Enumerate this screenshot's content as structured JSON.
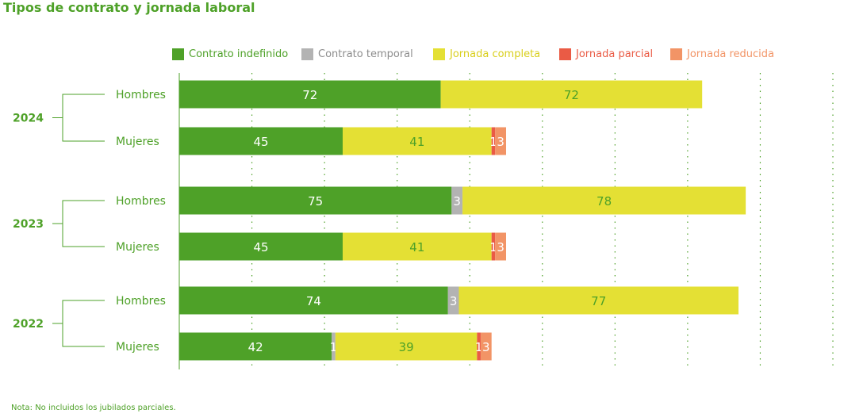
{
  "chart_data": {
    "type": "bar",
    "orientation": "horizontal",
    "stacked": true,
    "title": "Tipos de contrato y jornada laboral",
    "note": "Nota: No incluidos los jubilados parciales.",
    "xlim": [
      0,
      180
    ],
    "grid": true,
    "legend_placement": "top",
    "series": [
      {
        "name": "Contrato indefinido",
        "color": "#4ea128",
        "label_color": "#ffffff"
      },
      {
        "name": "Contrato temporal",
        "color": "#b3b3b3",
        "label_color": "#ffffff"
      },
      {
        "name": "Jornada completa",
        "color": "#e4e034",
        "label_color": "#4ea128"
      },
      {
        "name": "Jornada parcial",
        "color": "#ea5b45",
        "label_color": "#ffffff"
      },
      {
        "name": "Jornada reducida",
        "color": "#f29466",
        "label_color": "#ffffff"
      }
    ],
    "legend_text_colors": [
      "#4ea128",
      "#8c8c8c",
      "#d9cf1c",
      "#ea5b45",
      "#f29466"
    ],
    "groups": [
      {
        "year": "2024",
        "rows": [
          {
            "label": "Hombres",
            "values": [
              72,
              0,
              72,
              0,
              0
            ]
          },
          {
            "label": "Mujeres",
            "values": [
              45,
              0,
              41,
              1,
              3
            ]
          }
        ]
      },
      {
        "year": "2023",
        "rows": [
          {
            "label": "Hombres",
            "values": [
              75,
              3,
              78,
              0,
              0
            ]
          },
          {
            "label": "Mujeres",
            "values": [
              45,
              0,
              41,
              1,
              3
            ]
          }
        ]
      },
      {
        "year": "2022",
        "rows": [
          {
            "label": "Hombres",
            "values": [
              74,
              3,
              77,
              0,
              0
            ]
          },
          {
            "label": "Mujeres",
            "values": [
              42,
              1,
              39,
              1,
              3
            ]
          }
        ]
      }
    ]
  }
}
